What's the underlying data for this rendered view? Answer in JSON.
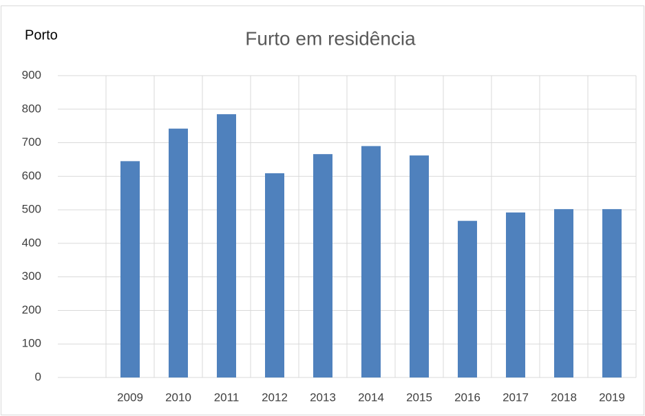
{
  "chart_data": {
    "type": "bar",
    "title": "Furto em residência",
    "annotation": "Porto",
    "categories": [
      null,
      "2009",
      "2010",
      "2011",
      "2012",
      "2013",
      "2014",
      "2015",
      "2016",
      "2017",
      "2018",
      "2019"
    ],
    "values": [
      null,
      645,
      742,
      785,
      609,
      666,
      690,
      662,
      467,
      492,
      502,
      502
    ],
    "color": "#4f81bd",
    "ylim": [
      0,
      900
    ],
    "yticks": [
      0,
      100,
      200,
      300,
      400,
      500,
      600,
      700,
      800,
      900
    ],
    "grid": true
  }
}
